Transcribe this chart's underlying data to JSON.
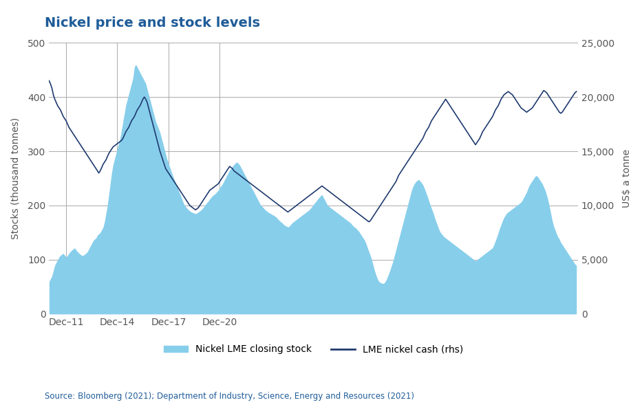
{
  "title": "Nickel price and stock levels",
  "title_color": "#1F5C99",
  "ylabel_left": "Stocks (thousand tonnes)",
  "ylabel_right": "US$ a tonne",
  "source_text": "Source: Bloomberg (2021); Department of Industry, Science, Energy and Resources (2021)",
  "legend_stock": "Nickel LME closing stock",
  "legend_price": "LME nickel cash (rhs)",
  "stock_color": "#87CEEB",
  "price_color": "#1F3A6E",
  "background_color": "#FFFFFF",
  "ylim_left": [
    0,
    500
  ],
  "ylim_right": [
    0,
    25000
  ],
  "yticks_left": [
    0,
    100,
    200,
    300,
    400,
    500
  ],
  "yticks_right": [
    0,
    5000,
    10000,
    15000,
    20000,
    25000
  ],
  "xtick_labels": [
    "Dec–11",
    "Dec–14",
    "Dec–17",
    "Dec–20"
  ],
  "stock_data": [
    60,
    65,
    70,
    80,
    90,
    95,
    100,
    105,
    108,
    110,
    112,
    108,
    105,
    108,
    112,
    115,
    118,
    120,
    122,
    118,
    115,
    112,
    110,
    108,
    108,
    110,
    112,
    115,
    120,
    125,
    130,
    135,
    138,
    140,
    145,
    148,
    150,
    155,
    160,
    170,
    185,
    200,
    220,
    240,
    260,
    275,
    285,
    295,
    305,
    315,
    325,
    340,
    355,
    370,
    385,
    395,
    405,
    415,
    425,
    435,
    455,
    460,
    455,
    450,
    445,
    440,
    435,
    430,
    425,
    415,
    405,
    395,
    385,
    375,
    365,
    355,
    348,
    342,
    335,
    325,
    315,
    305,
    295,
    285,
    278,
    270,
    262,
    255,
    248,
    242,
    235,
    228,
    222,
    215,
    208,
    202,
    198,
    195,
    192,
    190,
    188,
    187,
    186,
    185,
    186,
    188,
    190,
    192,
    195,
    198,
    202,
    205,
    208,
    212,
    215,
    218,
    220,
    222,
    225,
    228,
    232,
    236,
    240,
    245,
    250,
    255,
    260,
    265,
    268,
    272,
    275,
    278,
    280,
    278,
    275,
    270,
    265,
    260,
    255,
    250,
    245,
    240,
    235,
    230,
    225,
    220,
    215,
    210,
    205,
    200,
    198,
    195,
    192,
    190,
    188,
    186,
    185,
    183,
    182,
    180,
    178,
    175,
    172,
    170,
    168,
    165,
    163,
    162,
    160,
    162,
    165,
    168,
    170,
    172,
    174,
    176,
    178,
    180,
    182,
    184,
    186,
    188,
    190,
    192,
    195,
    198,
    202,
    205,
    208,
    212,
    215,
    218,
    220,
    215,
    210,
    205,
    200,
    198,
    196,
    194,
    192,
    190,
    188,
    186,
    184,
    182,
    180,
    178,
    176,
    174,
    172,
    170,
    168,
    165,
    162,
    160,
    158,
    155,
    152,
    148,
    144,
    140,
    136,
    130,
    122,
    115,
    108,
    100,
    90,
    80,
    72,
    65,
    60,
    58,
    57,
    56,
    58,
    62,
    68,
    75,
    82,
    90,
    98,
    108,
    118,
    128,
    138,
    148,
    158,
    168,
    178,
    188,
    198,
    208,
    218,
    228,
    235,
    240,
    244,
    246,
    248,
    245,
    242,
    238,
    232,
    225,
    218,
    210,
    202,
    195,
    188,
    180,
    172,
    165,
    158,
    152,
    148,
    145,
    142,
    140,
    138,
    136,
    134,
    132,
    130,
    128,
    126,
    124,
    122,
    120,
    118,
    116,
    114,
    112,
    110,
    108,
    106,
    104,
    102,
    100,
    98,
    100,
    102,
    104,
    106,
    108,
    110,
    112,
    114,
    116,
    118,
    120,
    122,
    128,
    135,
    142,
    150,
    158,
    165,
    172,
    178,
    182,
    186,
    188,
    190,
    192,
    194,
    196,
    198,
    200,
    202,
    204,
    206,
    210,
    215,
    220,
    225,
    232,
    238,
    242,
    246,
    250,
    254,
    255,
    252,
    248,
    244,
    240,
    234,
    228,
    220,
    210,
    198,
    185,
    172,
    162,
    155,
    148,
    142,
    138,
    132,
    128,
    124,
    120,
    116,
    112,
    108,
    104,
    100,
    96,
    92,
    90
  ],
  "price_data": [
    21500,
    21200,
    20800,
    20200,
    19800,
    19500,
    19200,
    19000,
    18800,
    18500,
    18200,
    18000,
    17800,
    17500,
    17200,
    17000,
    16800,
    16600,
    16400,
    16200,
    16000,
    15800,
    15600,
    15400,
    15200,
    15000,
    14800,
    14600,
    14400,
    14200,
    14000,
    13800,
    13600,
    13400,
    13200,
    13000,
    13200,
    13500,
    13800,
    14000,
    14200,
    14500,
    14800,
    15000,
    15200,
    15400,
    15500,
    15600,
    15700,
    15800,
    15900,
    16000,
    16200,
    16500,
    16800,
    17000,
    17200,
    17500,
    17800,
    18000,
    18200,
    18500,
    18800,
    19000,
    19200,
    19500,
    19800,
    20000,
    19800,
    19500,
    19000,
    18500,
    18000,
    17500,
    17000,
    16500,
    16000,
    15500,
    15000,
    14600,
    14200,
    13800,
    13400,
    13200,
    13000,
    12800,
    12600,
    12400,
    12200,
    12000,
    11800,
    11600,
    11400,
    11200,
    11000,
    10800,
    10600,
    10400,
    10200,
    10000,
    9900,
    9800,
    9700,
    9600,
    9700,
    9800,
    10000,
    10200,
    10400,
    10600,
    10800,
    11000,
    11200,
    11400,
    11500,
    11600,
    11700,
    11800,
    11900,
    12000,
    12200,
    12400,
    12600,
    12800,
    13000,
    13200,
    13400,
    13600,
    13500,
    13400,
    13200,
    13100,
    13000,
    12900,
    12800,
    12700,
    12600,
    12500,
    12400,
    12300,
    12200,
    12100,
    12000,
    11900,
    11800,
    11700,
    11600,
    11500,
    11400,
    11300,
    11200,
    11100,
    11000,
    10900,
    10800,
    10700,
    10600,
    10500,
    10400,
    10300,
    10200,
    10100,
    10000,
    9900,
    9800,
    9700,
    9600,
    9500,
    9400,
    9500,
    9600,
    9700,
    9800,
    9900,
    10000,
    10100,
    10200,
    10300,
    10400,
    10500,
    10600,
    10700,
    10800,
    10900,
    11000,
    11100,
    11200,
    11300,
    11400,
    11500,
    11600,
    11700,
    11800,
    11700,
    11600,
    11500,
    11400,
    11300,
    11200,
    11100,
    11000,
    10900,
    10800,
    10700,
    10600,
    10500,
    10400,
    10300,
    10200,
    10100,
    10000,
    9900,
    9800,
    9700,
    9600,
    9500,
    9400,
    9300,
    9200,
    9100,
    9000,
    8900,
    8800,
    8700,
    8600,
    8500,
    8600,
    8800,
    9000,
    9200,
    9400,
    9600,
    9800,
    10000,
    10200,
    10400,
    10600,
    10800,
    11000,
    11200,
    11400,
    11600,
    11800,
    12000,
    12200,
    12500,
    12800,
    13000,
    13200,
    13400,
    13600,
    13800,
    14000,
    14200,
    14400,
    14600,
    14800,
    15000,
    15200,
    15400,
    15600,
    15800,
    16000,
    16200,
    16500,
    16800,
    17000,
    17200,
    17500,
    17800,
    18000,
    18200,
    18400,
    18600,
    18800,
    19000,
    19200,
    19400,
    19600,
    19800,
    19600,
    19400,
    19200,
    19000,
    18800,
    18600,
    18400,
    18200,
    18000,
    17800,
    17600,
    17400,
    17200,
    17000,
    16800,
    16600,
    16400,
    16200,
    16000,
    15800,
    15600,
    15800,
    16000,
    16200,
    16500,
    16800,
    17000,
    17200,
    17400,
    17600,
    17800,
    18000,
    18200,
    18500,
    18800,
    19000,
    19200,
    19500,
    19800,
    20000,
    20200,
    20300,
    20400,
    20500,
    20400,
    20300,
    20200,
    20000,
    19800,
    19600,
    19400,
    19200,
    19000,
    18900,
    18800,
    18700,
    18600,
    18700,
    18800,
    18900,
    19000,
    19200,
    19400,
    19600,
    19800,
    20000,
    20200,
    20400,
    20600,
    20500,
    20400,
    20200,
    20000,
    19800,
    19600,
    19400,
    19200,
    19000,
    18800,
    18600,
    18500,
    18600,
    18800,
    19000,
    19200,
    19400,
    19600,
    19800,
    20000,
    20200,
    20400,
    20500
  ]
}
